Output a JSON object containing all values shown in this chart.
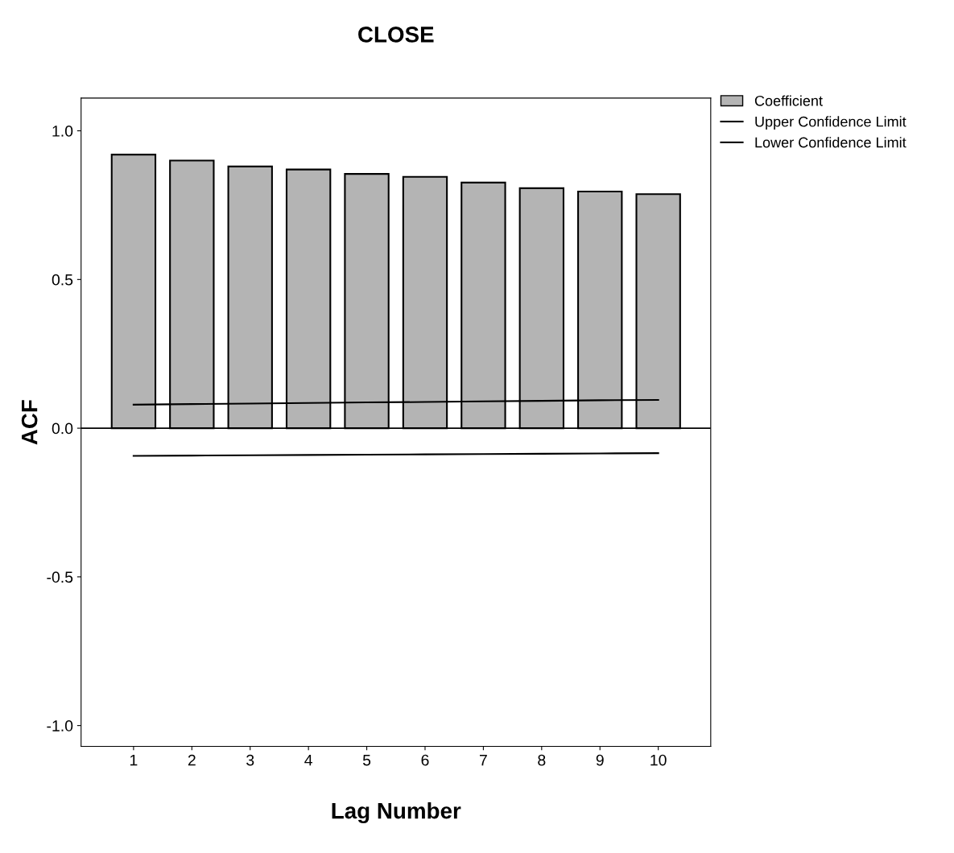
{
  "chart_data": {
    "type": "bar",
    "title": "CLOSE",
    "xlabel": "Lag Number",
    "ylabel": "ACF",
    "categories": [
      "1",
      "2",
      "3",
      "4",
      "5",
      "6",
      "7",
      "8",
      "9",
      "10"
    ],
    "ylim": [
      -1.07,
      1.11
    ],
    "yticks": [
      {
        "value": -1,
        "label": "-1.0"
      },
      {
        "value": -0.5,
        "label": "-0.5"
      },
      {
        "value": 0,
        "label": "0.0"
      },
      {
        "value": 0.5,
        "label": "0.5"
      },
      {
        "value": 1,
        "label": "1.0"
      }
    ],
    "series": [
      {
        "name": "Coefficient",
        "color": "#b4b4b4",
        "values": [
          0.92,
          0.9,
          0.88,
          0.87,
          0.855,
          0.845,
          0.826,
          0.807,
          0.796,
          0.787
        ]
      },
      {
        "name": "Upper Confidence Limit",
        "type": "line",
        "color": "#000000",
        "values": [
          0.079,
          0.081,
          0.083,
          0.085,
          0.087,
          0.088,
          0.09,
          0.092,
          0.094,
          0.095
        ]
      },
      {
        "name": "Lower Confidence Limit",
        "type": "line",
        "color": "#000000",
        "values": [
          -0.093,
          -0.092,
          -0.091,
          -0.09,
          -0.089,
          -0.088,
          -0.087,
          -0.086,
          -0.085,
          -0.084
        ]
      }
    ],
    "ref_lines": [
      {
        "axis": "y",
        "value": 0,
        "color": "#000000"
      }
    ],
    "grid": false,
    "legend": "top right"
  }
}
